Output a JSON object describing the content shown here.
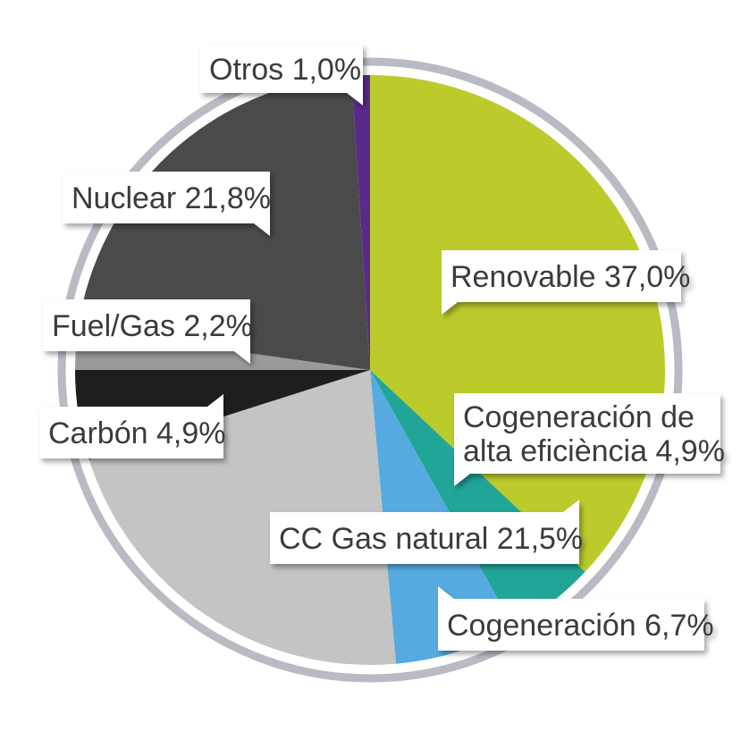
{
  "chart_data": {
    "type": "pie",
    "title": "",
    "categories": [
      "Renovable",
      "Cogeneración de alta eficiència",
      "Cogeneración",
      "CC Gas natural",
      "Carbón",
      "Fuel/Gas",
      "Nuclear",
      "Otros"
    ],
    "values": [
      37.0,
      4.9,
      6.7,
      21.5,
      4.9,
      2.2,
      21.8,
      1.0
    ],
    "labels": [
      [
        "Renovable 37,0%"
      ],
      [
        "Cogeneración de",
        "alta eficiència 4,9%"
      ],
      [
        "Cogeneración 6,7%"
      ],
      [
        "CC Gas natural 21,5%"
      ],
      [
        "Carbón 4,9%"
      ],
      [
        "Fuel/Gas 2,2%"
      ],
      [
        "Nuclear 21,8%"
      ],
      [
        "Otros 1,0%"
      ]
    ],
    "colors": [
      "#bccb2c",
      "#21a597",
      "#55abe0",
      "#c4c4c4",
      "#1e1e1e",
      "#9a9a9a",
      "#4a4a4a",
      "#5a2a8a"
    ],
    "start_angle_deg": 0,
    "direction": "clockwise",
    "legend": "none",
    "ring_color": "#b9bac3"
  }
}
